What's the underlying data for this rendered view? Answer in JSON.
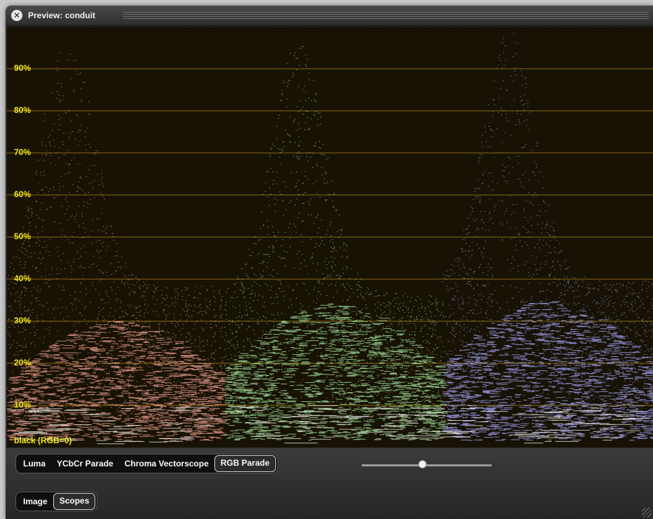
{
  "window": {
    "title": "Preview: conduit",
    "close_icon": "close-icon"
  },
  "scope": {
    "mode": "RGB Parade",
    "grid_labels": [
      "90%",
      "80%",
      "70%",
      "60%",
      "50%",
      "40%",
      "30%",
      "20%",
      "10%"
    ],
    "black_label": "black (RGB=0)",
    "colors": {
      "background": "#171204",
      "gridline": "#8a6a0c",
      "label": "#f5e818",
      "red_channel": "#f0a090",
      "green_channel": "#a8e8a0",
      "blue_channel": "#a8a8ff"
    }
  },
  "scope_tabs": [
    {
      "label": "Luma",
      "active": false
    },
    {
      "label": "YCbCr Parade",
      "active": false
    },
    {
      "label": "Chroma Vectorscope",
      "active": false
    },
    {
      "label": "RGB Parade",
      "active": true
    }
  ],
  "slider": {
    "value": 0.47
  },
  "view_tabs": [
    {
      "label": "Image",
      "active": false
    },
    {
      "label": "Scopes",
      "active": true
    }
  ]
}
